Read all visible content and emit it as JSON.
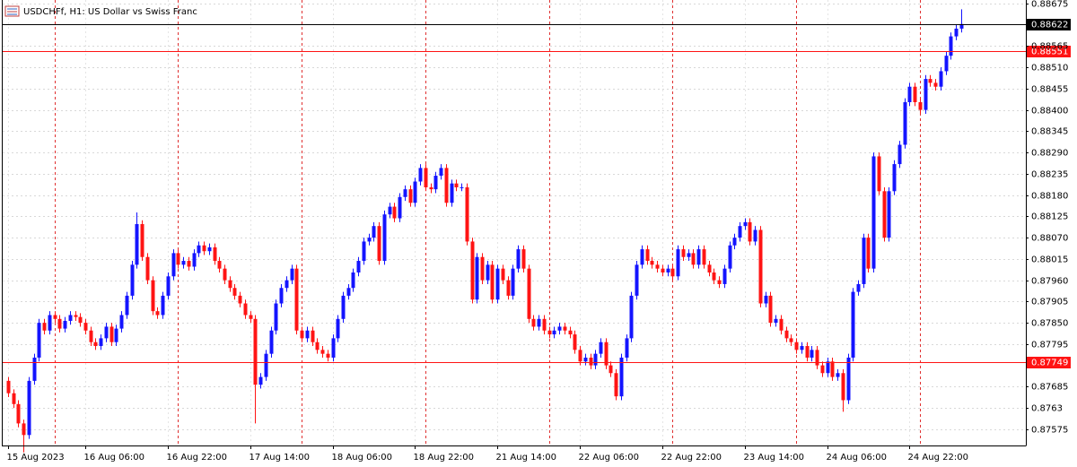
{
  "chart_data": {
    "type": "candlestick",
    "title": "USDCHFf, H1:  US Dollar vs Swiss Franc",
    "bull_color": "#1414ff",
    "bear_color": "#ff1414",
    "grid": true,
    "ylim": [
      0.87533,
      0.88684
    ],
    "yticks": [
      0.88675,
      0.88565,
      {
        "value": 0.8851,
        "label": "0.88510"
      },
      0.88455,
      {
        "value": 0.884,
        "label": "0.88400"
      },
      0.88345,
      {
        "value": 0.8829,
        "label": "0.88290"
      },
      0.88235,
      {
        "value": 0.8818,
        "label": "0.88180"
      },
      0.88125,
      {
        "value": 0.8807,
        "label": "0.88070"
      },
      0.88015,
      {
        "value": 0.8796,
        "label": "0.87960"
      },
      0.87905,
      {
        "value": 0.8785,
        "label": "0.87850"
      },
      0.87795,
      0.87685,
      0.8763,
      0.87575
    ],
    "price_lines": [
      {
        "value": 0.88622,
        "color": "#000000"
      },
      {
        "value": 0.88551,
        "color": "#ff1414"
      },
      {
        "value": 0.87749,
        "color": "#ff1414"
      }
    ],
    "categories": [
      "15 Aug 2023",
      null,
      null,
      null,
      null,
      null,
      null,
      null,
      null,
      null,
      null,
      null,
      null,
      null,
      null,
      "16 Aug 06:00",
      null,
      null,
      null,
      null,
      null,
      null,
      null,
      null,
      null,
      null,
      null,
      null,
      null,
      null,
      null,
      "16 Aug 22:00",
      null,
      null,
      null,
      null,
      null,
      null,
      null,
      null,
      null,
      null,
      null,
      null,
      null,
      null,
      null,
      "17 Aug 14:00",
      null,
      null,
      null,
      null,
      null,
      null,
      null,
      null,
      null,
      null,
      null,
      null,
      null,
      null,
      null,
      "18 Aug 06:00",
      null,
      null,
      null,
      null,
      null,
      null,
      null,
      null,
      null,
      null,
      null,
      null,
      null,
      null,
      null,
      "18 Aug 22:00",
      null,
      null,
      null,
      null,
      null,
      null,
      null,
      null,
      null,
      null,
      null,
      null,
      null,
      null,
      null,
      "21 Aug 14:00",
      null,
      null,
      null,
      null,
      null,
      null,
      null,
      null,
      null,
      null,
      null,
      null,
      null,
      null,
      null,
      "22 Aug 06:00",
      null,
      null,
      null,
      null,
      null,
      null,
      null,
      null,
      null,
      null,
      null,
      null,
      null,
      null,
      null,
      "22 Aug 22:00",
      null,
      null,
      null,
      null,
      null,
      null,
      null,
      null,
      null,
      null,
      null,
      null,
      null,
      null,
      null,
      "23 Aug 14:00",
      null,
      null,
      null,
      null,
      null,
      null,
      null,
      null,
      null,
      null,
      null,
      null,
      null,
      null,
      null,
      "24 Aug 06:00",
      null,
      null,
      null,
      null,
      null,
      null,
      null,
      null,
      null,
      null,
      null,
      null,
      null,
      null,
      null,
      "24 Aug 22:00",
      null,
      null,
      null,
      null,
      null,
      null,
      null,
      null,
      null,
      null
    ],
    "open": [
      0.877,
      0.87668,
      0.8764,
      0.8759,
      0.8756,
      0.877,
      0.8776,
      0.8785,
      0.8783,
      0.8787,
      0.8786,
      0.87835,
      0.87855,
      0.8787,
      0.87865,
      0.8785,
      0.8783,
      0.878,
      0.8779,
      0.8781,
      0.8784,
      0.878,
      0.87835,
      0.8787,
      0.8792,
      0.88,
      0.88105,
      0.8802,
      0.8796,
      0.8788,
      0.8787,
      0.8792,
      0.8797,
      0.8803,
      0.88,
      0.8801,
      0.87995,
      0.8803,
      0.8805,
      0.88035,
      0.88045,
      0.8801,
      0.8799,
      0.8796,
      0.8794,
      0.8792,
      0.879,
      0.8787,
      0.8786,
      0.8769,
      0.8771,
      0.8777,
      0.8783,
      0.879,
      0.8794,
      0.8796,
      0.8799,
      0.8783,
      0.8781,
      0.8783,
      0.878,
      0.8778,
      0.8777,
      0.8776,
      0.8781,
      0.8786,
      0.8792,
      0.8794,
      0.8798,
      0.8801,
      0.8806,
      0.8807,
      0.881,
      0.8801,
      0.8813,
      0.8815,
      0.8812,
      0.88175,
      0.88195,
      0.8816,
      0.88215,
      0.8825,
      0.882,
      0.88195,
      0.8823,
      0.8825,
      0.8816,
      0.8821,
      0.882,
      0.882,
      0.8806,
      0.8791,
      0.8802,
      0.8796,
      0.88,
      0.8791,
      0.8799,
      0.8796,
      0.8792,
      0.8799,
      0.8804,
      0.8799,
      0.8786,
      0.8784,
      0.8786,
      0.8783,
      0.8782,
      0.8783,
      0.8784,
      0.8783,
      0.8782,
      0.8778,
      0.8775,
      0.8776,
      0.8774,
      0.8777,
      0.878,
      0.8774,
      0.8772,
      0.8766,
      0.8776,
      0.8781,
      0.8792,
      0.88,
      0.8804,
      0.8801,
      0.88,
      0.8799,
      0.8798,
      0.8799,
      0.8797,
      0.8804,
      0.8802,
      0.8803,
      0.88,
      0.8804,
      0.88,
      0.8798,
      0.8796,
      0.8795,
      0.8799,
      0.8805,
      0.8807,
      0.881,
      0.8811,
      0.8806,
      0.8809,
      0.879,
      0.8792,
      0.8785,
      0.8786,
      0.8783,
      0.8781,
      0.878,
      0.8778,
      0.8779,
      0.8776,
      0.8778,
      0.8774,
      0.8772,
      0.8775,
      0.8771,
      0.8772,
      0.8765,
      0.8776,
      0.8793,
      0.8795,
      0.8807,
      0.8799,
      0.8828,
      0.8819,
      0.8807,
      0.8819,
      0.8826,
      0.8831,
      0.8842,
      0.8846,
      0.8842,
      0.884,
      0.8848,
      0.8847,
      0.8846,
      0.885,
      0.8854,
      0.8859,
      0.8861
    ],
    "high": [
      0.8771,
      0.87678,
      0.8765,
      0.876,
      0.8771,
      0.8777,
      0.8786,
      0.8786,
      0.8788,
      0.8788,
      0.8787,
      0.87865,
      0.8788,
      0.8788,
      0.87875,
      0.8786,
      0.8784,
      0.8781,
      0.8782,
      0.8785,
      0.8785,
      0.87845,
      0.8788,
      0.8793,
      0.8801,
      0.88135,
      0.88115,
      0.8803,
      0.8797,
      0.8789,
      0.8793,
      0.8798,
      0.8804,
      0.8804,
      0.8802,
      0.8802,
      0.8804,
      0.8806,
      0.8806,
      0.88055,
      0.88055,
      0.8802,
      0.88,
      0.8797,
      0.8795,
      0.8793,
      0.8791,
      0.8788,
      0.8787,
      0.8772,
      0.8778,
      0.8784,
      0.8791,
      0.8795,
      0.8797,
      0.88,
      0.88,
      0.8784,
      0.8784,
      0.8784,
      0.8781,
      0.8779,
      0.8778,
      0.8782,
      0.8787,
      0.8793,
      0.8795,
      0.8799,
      0.8802,
      0.8807,
      0.8808,
      0.8811,
      0.8811,
      0.8814,
      0.8816,
      0.8816,
      0.88185,
      0.88205,
      0.88205,
      0.88225,
      0.8826,
      0.8826,
      0.8821,
      0.8824,
      0.8826,
      0.8826,
      0.8822,
      0.8822,
      0.8821,
      0.8821,
      0.8807,
      0.8803,
      0.8803,
      0.8801,
      0.8801,
      0.88,
      0.88,
      0.8797,
      0.88,
      0.8805,
      0.8805,
      0.88,
      0.8787,
      0.8787,
      0.8787,
      0.8784,
      0.8784,
      0.8785,
      0.8785,
      0.8784,
      0.8783,
      0.8779,
      0.8777,
      0.8777,
      0.8778,
      0.8781,
      0.8781,
      0.8775,
      0.8773,
      0.8777,
      0.8782,
      0.8793,
      0.8801,
      0.8805,
      0.8805,
      0.8802,
      0.8801,
      0.88,
      0.88,
      0.88,
      0.8805,
      0.8805,
      0.8804,
      0.8804,
      0.8805,
      0.8805,
      0.8801,
      0.8799,
      0.8797,
      0.88,
      0.8806,
      0.8808,
      0.8811,
      0.8812,
      0.8812,
      0.881,
      0.881,
      0.8793,
      0.8793,
      0.8787,
      0.8787,
      0.8784,
      0.8782,
      0.8781,
      0.878,
      0.878,
      0.8779,
      0.8779,
      0.8775,
      0.8776,
      0.8776,
      0.8773,
      0.8773,
      0.8777,
      0.8794,
      0.8796,
      0.8808,
      0.8808,
      0.8829,
      0.8829,
      0.882,
      0.882,
      0.8827,
      0.8832,
      0.8843,
      0.8847,
      0.8847,
      0.8843,
      0.8849,
      0.8849,
      0.8848,
      0.8851,
      0.8855,
      0.886,
      0.8862,
      0.8866
    ],
    "low": [
      0.87658,
      0.8763,
      0.8758,
      0.87515,
      0.8755,
      0.8769,
      0.8775,
      0.8782,
      0.8782,
      0.8785,
      0.87825,
      0.87825,
      0.87845,
      0.87855,
      0.8784,
      0.8782,
      0.8779,
      0.8778,
      0.8778,
      0.878,
      0.8779,
      0.8779,
      0.87825,
      0.8786,
      0.8791,
      0.8799,
      0.8801,
      0.8795,
      0.8787,
      0.8786,
      0.8786,
      0.8791,
      0.8796,
      0.8799,
      0.8799,
      0.87985,
      0.87985,
      0.8802,
      0.88025,
      0.88025,
      0.88,
      0.8798,
      0.8795,
      0.8793,
      0.8791,
      0.8789,
      0.8786,
      0.8785,
      0.8759,
      0.8768,
      0.877,
      0.8776,
      0.8782,
      0.8789,
      0.8793,
      0.8795,
      0.8782,
      0.878,
      0.878,
      0.8779,
      0.8777,
      0.8776,
      0.8775,
      0.8775,
      0.878,
      0.8785,
      0.8791,
      0.8793,
      0.8797,
      0.88,
      0.8805,
      0.8806,
      0.88,
      0.88,
      0.8812,
      0.8811,
      0.8811,
      0.88165,
      0.8815,
      0.8815,
      0.88205,
      0.8819,
      0.88185,
      0.88185,
      0.8822,
      0.8815,
      0.8815,
      0.8819,
      0.8819,
      0.8805,
      0.879,
      0.879,
      0.8795,
      0.8795,
      0.879,
      0.879,
      0.8795,
      0.8791,
      0.8791,
      0.8798,
      0.8798,
      0.8785,
      0.8783,
      0.8783,
      0.8782,
      0.8781,
      0.8781,
      0.8782,
      0.8782,
      0.8781,
      0.8777,
      0.8774,
      0.8774,
      0.8773,
      0.8773,
      0.8776,
      0.8773,
      0.8771,
      0.8765,
      0.8765,
      0.8775,
      0.878,
      0.8791,
      0.8799,
      0.88,
      0.8799,
      0.8798,
      0.8797,
      0.8797,
      0.8796,
      0.8796,
      0.8801,
      0.8801,
      0.8799,
      0.8799,
      0.8799,
      0.8797,
      0.8795,
      0.8794,
      0.8794,
      0.8798,
      0.8804,
      0.8806,
      0.8809,
      0.8805,
      0.8805,
      0.8789,
      0.8789,
      0.8784,
      0.8784,
      0.8782,
      0.878,
      0.8779,
      0.8777,
      0.8777,
      0.8775,
      0.8775,
      0.8773,
      0.8771,
      0.8771,
      0.877,
      0.877,
      0.8762,
      0.8764,
      0.8775,
      0.8792,
      0.8794,
      0.8798,
      0.8798,
      0.8818,
      0.8806,
      0.8806,
      0.8818,
      0.8825,
      0.883,
      0.8841,
      0.8841,
      0.8839,
      0.8839,
      0.8846,
      0.8845,
      0.8845,
      0.8849,
      0.8853,
      0.8858,
      0.886
    ],
    "close": [
      0.87668,
      0.8764,
      0.8759,
      0.8756,
      0.877,
      0.8776,
      0.8785,
      0.8783,
      0.8787,
      0.8786,
      0.87835,
      0.87855,
      0.8787,
      0.87865,
      0.8785,
      0.8783,
      0.878,
      0.8779,
      0.8781,
      0.8784,
      0.878,
      0.87835,
      0.8787,
      0.8792,
      0.88,
      0.88105,
      0.8802,
      0.8796,
      0.8788,
      0.8787,
      0.8792,
      0.8797,
      0.8803,
      0.88,
      0.8801,
      0.87995,
      0.8803,
      0.8805,
      0.88035,
      0.88045,
      0.8801,
      0.8799,
      0.8796,
      0.8794,
      0.8792,
      0.879,
      0.8787,
      0.8786,
      0.8769,
      0.8771,
      0.8777,
      0.8783,
      0.879,
      0.8794,
      0.8796,
      0.8799,
      0.8783,
      0.8781,
      0.8783,
      0.878,
      0.8778,
      0.8777,
      0.8776,
      0.8781,
      0.8786,
      0.8792,
      0.8794,
      0.8798,
      0.8801,
      0.8806,
      0.8807,
      0.881,
      0.8801,
      0.8813,
      0.8815,
      0.8812,
      0.88175,
      0.88195,
      0.8816,
      0.88215,
      0.8825,
      0.882,
      0.88195,
      0.8823,
      0.8825,
      0.8816,
      0.8821,
      0.882,
      0.882,
      0.8806,
      0.8791,
      0.8802,
      0.8796,
      0.88,
      0.8791,
      0.8799,
      0.8796,
      0.8792,
      0.8799,
      0.8804,
      0.8799,
      0.8786,
      0.8784,
      0.8786,
      0.8783,
      0.8782,
      0.8783,
      0.8784,
      0.8783,
      0.8782,
      0.8778,
      0.8775,
      0.8776,
      0.8774,
      0.8777,
      0.878,
      0.8774,
      0.8772,
      0.8766,
      0.8776,
      0.8781,
      0.8792,
      0.88,
      0.8804,
      0.8801,
      0.88,
      0.8799,
      0.8798,
      0.8799,
      0.8797,
      0.8804,
      0.8802,
      0.8803,
      0.88,
      0.8804,
      0.88,
      0.8798,
      0.8796,
      0.8795,
      0.8799,
      0.8805,
      0.8807,
      0.881,
      0.8811,
      0.8806,
      0.8809,
      0.879,
      0.8792,
      0.8785,
      0.8786,
      0.8783,
      0.8781,
      0.878,
      0.8778,
      0.8779,
      0.8776,
      0.8778,
      0.8774,
      0.8772,
      0.8775,
      0.8771,
      0.8772,
      0.8765,
      0.8776,
      0.8793,
      0.8795,
      0.8807,
      0.8799,
      0.8828,
      0.8819,
      0.8807,
      0.8819,
      0.8826,
      0.8831,
      0.8842,
      0.8846,
      0.8842,
      0.884,
      0.8848,
      0.8847,
      0.8846,
      0.885,
      0.8854,
      0.8859,
      0.8861,
      0.88622
    ]
  }
}
